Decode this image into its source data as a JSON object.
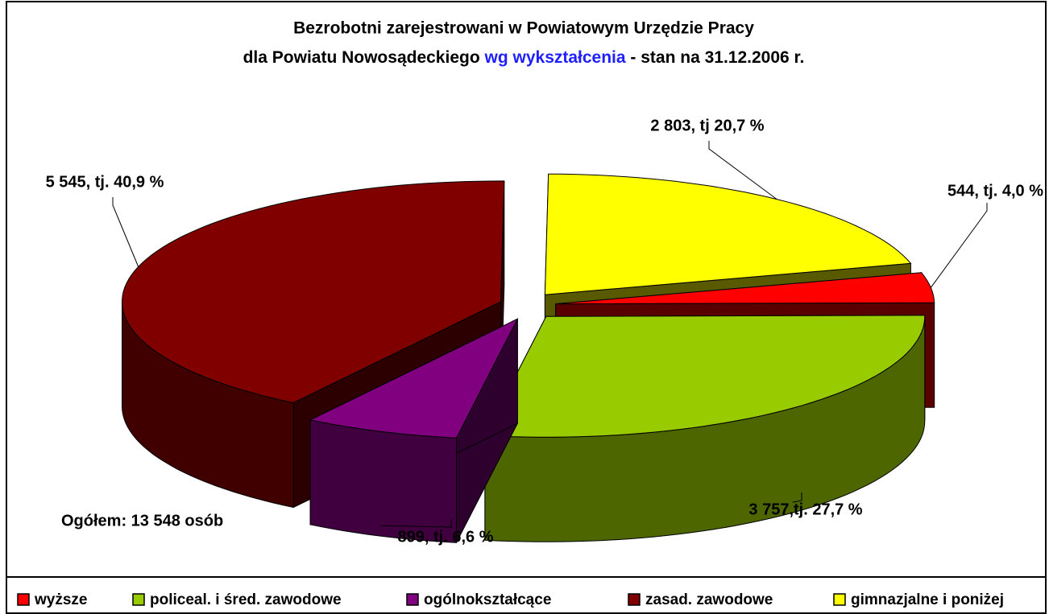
{
  "chart_data": {
    "type": "pie3d",
    "title": {
      "line1": "Bezrobotni zarejestrowani w Powiatowym Urzędzie Pracy",
      "line2": [
        "dla Powiatu Nowosądeckiego",
        "wg wykształcenia",
        "- stan na 31.12.2006 r."
      ],
      "highlight_color": "#1f1fff"
    },
    "categories": [
      "wyższe",
      "policeal. i śred. zawodowe",
      "ogólnokształcące",
      "zasad. zawodowe",
      "gimnazjalne i poniżej"
    ],
    "values": [
      544,
      3757,
      899,
      5545,
      2803
    ],
    "value_labels": [
      "544, tj. 4,0 %",
      "3 757,tj. 27,7 %",
      "899, tj. 6,6 %",
      "5 545, tj. 40,9 %",
      "2 803, tj 20,7 %"
    ],
    "colors": [
      "#ff0000",
      "#99cc00",
      "#800080",
      "#800000",
      "#ffff00"
    ],
    "annotation": "Ogółem: 13 548 osób",
    "legend": "bottom"
  }
}
